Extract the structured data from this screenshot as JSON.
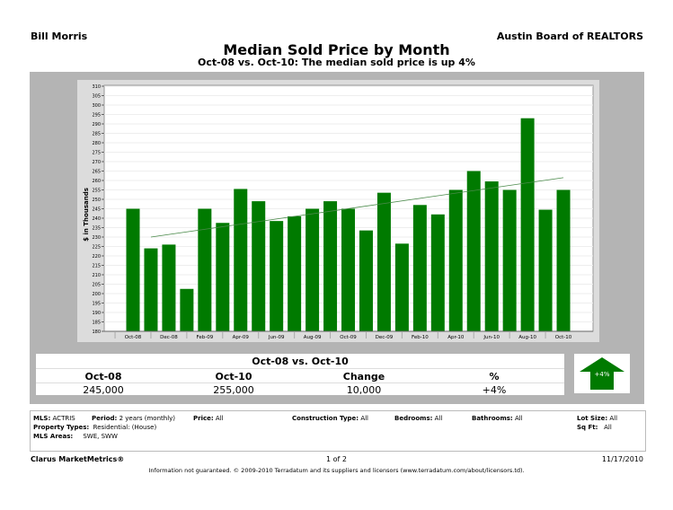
{
  "header": {
    "agent": "Bill Morris",
    "board": "Austin Board of REALTORS",
    "title": "Median Sold Price by Month",
    "subtitle": "Oct-08 vs. Oct-10:  The median sold price is up 4%"
  },
  "chart_data": {
    "type": "bar",
    "ylabel": "$ in Thousands",
    "ylim": [
      180,
      310
    ],
    "ytick_step": 5,
    "grid": true,
    "bar_color": "#007a00",
    "categories": [
      "Oct-08",
      "Nov-08",
      "Dec-08",
      "Jan-09",
      "Feb-09",
      "Mar-09",
      "Apr-09",
      "May-09",
      "Jun-09",
      "Jul-09",
      "Aug-09",
      "Sep-09",
      "Oct-09",
      "Nov-09",
      "Dec-09",
      "Jan-10",
      "Feb-10",
      "Mar-10",
      "Apr-10",
      "May-10",
      "Jun-10",
      "Jul-10",
      "Aug-10",
      "Sep-10",
      "Oct-10"
    ],
    "xtick_labels": [
      "Oct-08",
      "Dec-08",
      "Feb-09",
      "Apr-09",
      "Jun-09",
      "Aug-09",
      "Oct-09",
      "Dec-09",
      "Feb-10",
      "Apr-10",
      "Jun-10",
      "Aug-10",
      "Oct-10"
    ],
    "values": [
      245,
      224,
      226,
      202.5,
      245,
      237.5,
      255.5,
      249,
      238.5,
      241,
      245,
      249,
      245,
      233.5,
      253.5,
      226.5,
      247,
      242,
      255,
      265,
      259.5,
      255,
      293,
      244.5,
      255
    ],
    "trendline": {
      "from": {
        "x": "Nov-08",
        "y": 230
      },
      "to": {
        "x": "Oct-10",
        "y": 261.5
      }
    }
  },
  "summary": {
    "title": "Oct-08 vs. Oct-10",
    "headers": [
      "Oct-08",
      "Oct-10",
      "Change",
      "%"
    ],
    "values": [
      "245,000",
      "255,000",
      "10,000",
      "+4%"
    ],
    "badge": "+4%",
    "badge_color": "#007a00"
  },
  "info": {
    "mls_label": "MLS:",
    "mls": "ACTRIS",
    "period_label": "Period:",
    "period": "2 years (monthly)",
    "price_label": "Price:",
    "price": "All",
    "construction_label": "Construction Type:",
    "construction": "All",
    "bedrooms_label": "Bedrooms:",
    "bedrooms": "All",
    "bathrooms_label": "Bathrooms:",
    "bathrooms": "All",
    "lot_label": "Lot Size:",
    "lot": "All",
    "ptype_label": "Property Types:",
    "ptype": "Residential: (House)",
    "sqft_label": "Sq Ft:",
    "sqft": "All",
    "areas_label": "MLS Areas:",
    "areas": "SWE, SWW"
  },
  "footer": {
    "brand": "Clarus MarketMetrics®",
    "page": "1 of 2",
    "date": "11/17/2010",
    "disclaimer": "Information not guaranteed.  © 2009-2010 Terradatum and its suppliers and licensors (www.terradatum.com/about/licensors.td)."
  }
}
